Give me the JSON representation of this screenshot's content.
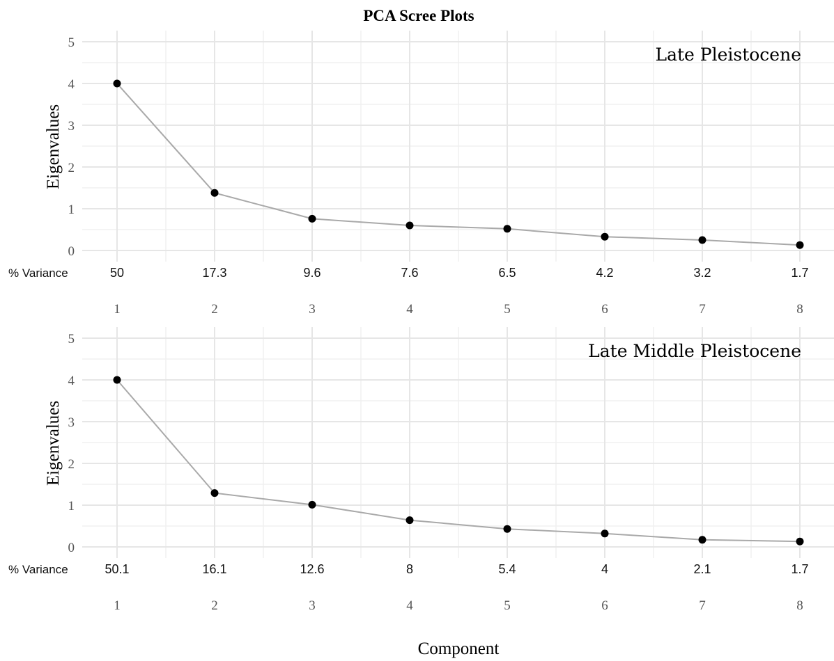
{
  "chart_data": {
    "title": "PCA Scree Plots",
    "type": "line",
    "xlabel": "Component",
    "ylabel": "Eigenvalues",
    "variance_label": "% Variance",
    "x": [
      "1",
      "2",
      "3",
      "4",
      "5",
      "6",
      "7",
      "8"
    ],
    "yticks": [
      "0",
      "1",
      "2",
      "3",
      "4",
      "5"
    ],
    "ylim": [
      0,
      5
    ],
    "grid": true,
    "panels": [
      {
        "label": "Late Pleistocene",
        "values": [
          4.0,
          1.38,
          0.76,
          0.6,
          0.52,
          0.33,
          0.25,
          0.13
        ],
        "variance": [
          "50",
          "17.3",
          "9.6",
          "7.6",
          "6.5",
          "4.2",
          "3.2",
          "1.7"
        ]
      },
      {
        "label": "Late Middle Pleistocene",
        "values": [
          4.0,
          1.29,
          1.01,
          0.64,
          0.43,
          0.32,
          0.17,
          0.13
        ],
        "variance": [
          "50.1",
          "16.1",
          "12.6",
          "8",
          "5.4",
          "4",
          "2.1",
          "1.7"
        ]
      }
    ]
  }
}
